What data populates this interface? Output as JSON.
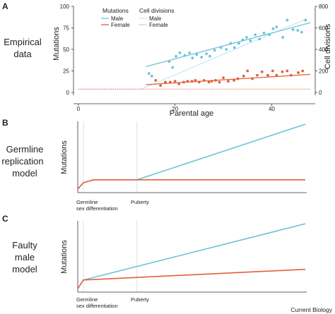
{
  "figure": {
    "credit": "Current Biology",
    "panels": [
      {
        "letter": "A",
        "label_lines": [
          "Empirical",
          "data"
        ]
      },
      {
        "letter": "B",
        "label_lines": [
          "Germline",
          "replication",
          "model"
        ]
      },
      {
        "letter": "C",
        "label_lines": [
          "Faulty",
          "male",
          "model"
        ]
      }
    ]
  },
  "colors": {
    "male": "#6ec3d9",
    "female": "#e0613a",
    "axis": "#333333",
    "guide": "#d9d9d9"
  },
  "chart_data": [
    {
      "type": "scatter",
      "panel": "A",
      "xlabel": "Parental age",
      "ylabel": "Mutations",
      "ylabel_right": "Cell divisions",
      "xlim": [
        -1,
        49
      ],
      "ylim": [
        0,
        100
      ],
      "ylim_right": [
        0,
        800
      ],
      "x_ticks": [
        0,
        20,
        40
      ],
      "y_ticks": [
        0,
        25,
        50,
        75,
        100
      ],
      "y_ticks_right": [
        0,
        200,
        400,
        600,
        800
      ],
      "legend": {
        "placement": "top-left",
        "mutations_title": "Mutations",
        "cell_divisions_title": "Cell divisions",
        "male_label": "Male",
        "female_label": "Female"
      },
      "series": [
        {
          "name": "Male",
          "group": "Mutations",
          "kind": "points",
          "color": "#6ec3d9",
          "points": [
            [
              14.6,
              22
            ],
            [
              15.2,
              19
            ],
            [
              18.8,
              36
            ],
            [
              19.5,
              29
            ],
            [
              20.2,
              42
            ],
            [
              21,
              46
            ],
            [
              22,
              43
            ],
            [
              23,
              46
            ],
            [
              23.6,
              40
            ],
            [
              24.5,
              44
            ],
            [
              25.5,
              41
            ],
            [
              26.5,
              45
            ],
            [
              27.2,
              42
            ],
            [
              28.2,
              49
            ],
            [
              29.5,
              52
            ],
            [
              30.6,
              50
            ],
            [
              31.5,
              57
            ],
            [
              32.3,
              52
            ],
            [
              33.2,
              57
            ],
            [
              34,
              61
            ],
            [
              34.8,
              64
            ],
            [
              35.6,
              60
            ],
            [
              36.6,
              67
            ],
            [
              37.5,
              62
            ],
            [
              38.4,
              69
            ],
            [
              39.5,
              67
            ],
            [
              40.3,
              74
            ],
            [
              41,
              76
            ],
            [
              42.3,
              64
            ],
            [
              43.2,
              84
            ],
            [
              44.4,
              73
            ],
            [
              45.4,
              72
            ],
            [
              46.2,
              70
            ],
            [
              47,
              84
            ]
          ]
        },
        {
          "name": "Male",
          "group": "Mutations",
          "kind": "fit",
          "color": "#6ec3d9",
          "x": [
            14,
            48
          ],
          "y": [
            30,
            81
          ]
        },
        {
          "name": "Female",
          "group": "Mutations",
          "kind": "points",
          "color": "#e0613a",
          "points": [
            [
              16,
              14
            ],
            [
              17,
              8
            ],
            [
              18,
              12
            ],
            [
              19,
              12
            ],
            [
              20,
              13
            ],
            [
              20.8,
              10
            ],
            [
              21.8,
              12
            ],
            [
              22.6,
              13
            ],
            [
              23.5,
              13
            ],
            [
              24.2,
              14
            ],
            [
              25,
              12
            ],
            [
              26,
              14
            ],
            [
              27,
              12
            ],
            [
              27.6,
              13
            ],
            [
              28.4,
              14
            ],
            [
              29.2,
              12
            ],
            [
              30,
              17
            ],
            [
              31,
              13
            ],
            [
              32.2,
              14
            ],
            [
              33,
              16
            ],
            [
              34.2,
              19
            ],
            [
              35,
              25
            ],
            [
              36,
              16
            ],
            [
              37,
              20
            ],
            [
              38,
              24
            ],
            [
              39.2,
              20
            ],
            [
              40.2,
              25
            ],
            [
              41,
              20
            ],
            [
              42.2,
              24
            ],
            [
              43.2,
              25
            ],
            [
              44,
              20
            ],
            [
              45.5,
              23
            ],
            [
              46.4,
              25
            ]
          ]
        },
        {
          "name": "Female",
          "group": "Mutations",
          "kind": "fit",
          "color": "#e0613a",
          "x": [
            14,
            48
          ],
          "y": [
            9,
            21
          ]
        },
        {
          "name": "Male",
          "group": "Cell divisions",
          "kind": "dotted",
          "color": "#6ec3d9",
          "x": [
            0,
            13,
            47
          ],
          "y": [
            30,
            30,
            680
          ]
        },
        {
          "name": "Female",
          "group": "Cell divisions",
          "kind": "dotted",
          "color": "#e0613a",
          "x": [
            0,
            48
          ],
          "y": [
            31,
            31
          ]
        }
      ]
    },
    {
      "type": "line",
      "panel": "B",
      "ylabel": "Mutations",
      "xlim": [
        0,
        100
      ],
      "ylim": [
        0,
        100
      ],
      "annotations": [
        {
          "x": 2.5,
          "lines": [
            "Germline",
            "sex differentiation"
          ]
        },
        {
          "x": 26,
          "lines": [
            "Puberty"
          ]
        }
      ],
      "series": [
        {
          "name": "Male",
          "color": "#6ec3d9",
          "x": [
            0,
            2.5,
            7,
            26,
            100
          ],
          "y": [
            5,
            14,
            18,
            18,
            96
          ]
        },
        {
          "name": "Female",
          "color": "#e0613a",
          "x": [
            0,
            2.5,
            7,
            26,
            100
          ],
          "y": [
            5,
            14,
            18,
            18,
            18
          ]
        }
      ]
    },
    {
      "type": "line",
      "panel": "C",
      "ylabel": "Mutations",
      "xlim": [
        0,
        100
      ],
      "ylim": [
        0,
        100
      ],
      "annotations": [
        {
          "x": 2.5,
          "lines": [
            "Germline",
            "sex differentiation"
          ]
        },
        {
          "x": 26,
          "lines": [
            "Puberty"
          ]
        }
      ],
      "series": [
        {
          "name": "Male",
          "color": "#6ec3d9",
          "x": [
            0,
            2.5,
            100
          ],
          "y": [
            5,
            17,
            96
          ]
        },
        {
          "name": "Female",
          "color": "#e0613a",
          "x": [
            0,
            2.5,
            100
          ],
          "y": [
            5,
            17,
            32
          ]
        }
      ]
    }
  ]
}
